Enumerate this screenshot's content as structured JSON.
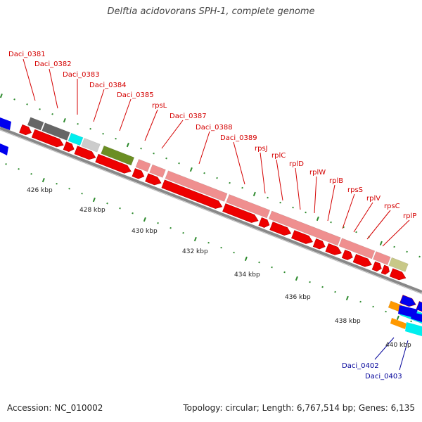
{
  "title": "Delftia acidovorans SPH-1, complete genome",
  "footer": {
    "accession": "Accession: NC_010002",
    "summary": "Topology: circular; Length: 6,767,514 bp; Genes: 6,135"
  },
  "colors": {
    "cds": "#ee0000",
    "ribosomal": "#ef8f8f",
    "gray_dark": "#666666",
    "gray_light": "#cccccc",
    "cyan": "#00eeee",
    "olive": "#6b8e23",
    "khaki": "#c8c888",
    "blue": "#0000ee",
    "orange": "#ff9900",
    "backbone": "#888888",
    "tick": "#2e8b2e"
  },
  "gene_labels": [
    {
      "text": "Daci_0381",
      "group": "red"
    },
    {
      "text": "Daci_0382",
      "group": "red"
    },
    {
      "text": "Daci_0383",
      "group": "red"
    },
    {
      "text": "Daci_0384",
      "group": "red"
    },
    {
      "text": "Daci_0385",
      "group": "red"
    },
    {
      "text": "rpsL",
      "group": "red"
    },
    {
      "text": "Daci_0387",
      "group": "red"
    },
    {
      "text": "Daci_0388",
      "group": "red"
    },
    {
      "text": "Daci_0389",
      "group": "red"
    },
    {
      "text": "rpsJ",
      "group": "red"
    },
    {
      "text": "rplC",
      "group": "red"
    },
    {
      "text": "rplD",
      "group": "red"
    },
    {
      "text": "rplW",
      "group": "red"
    },
    {
      "text": "rplB",
      "group": "red"
    },
    {
      "text": "rpsS",
      "group": "red"
    },
    {
      "text": "rplV",
      "group": "red"
    },
    {
      "text": "rpsC",
      "group": "red"
    },
    {
      "text": "rplP",
      "group": "red"
    },
    {
      "text": "Daci_0402",
      "group": "blue"
    },
    {
      "text": "Daci_0403",
      "group": "blue"
    }
  ],
  "ticks": [
    "426 kbp",
    "428 kbp",
    "430 kbp",
    "432 kbp",
    "434 kbp",
    "436 kbp",
    "438 kbp",
    "440 kbp"
  ]
}
